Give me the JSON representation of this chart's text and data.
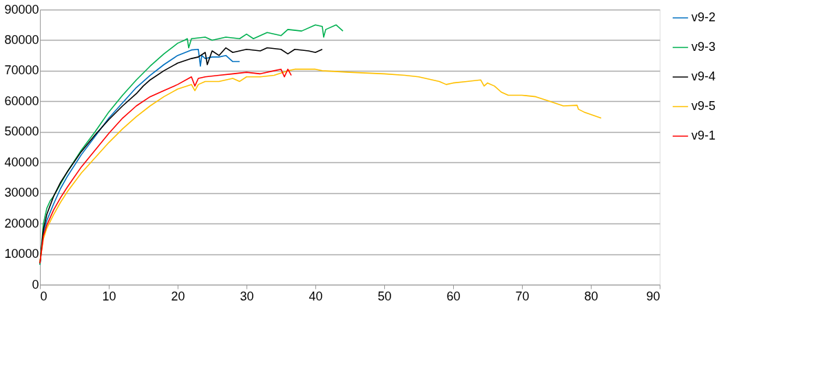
{
  "chart_data": {
    "type": "line",
    "xlim": [
      0,
      90
    ],
    "xticks": [
      0,
      10,
      20,
      30,
      40,
      50,
      60,
      70,
      80,
      90
    ],
    "ylim": [
      0,
      90000
    ],
    "yticks": [
      0,
      10000,
      20000,
      30000,
      40000,
      50000,
      60000,
      70000,
      80000,
      90000
    ],
    "grid": "y",
    "legend": "right",
    "marker": "none",
    "line_style": "solid",
    "series": [
      {
        "name": "v9-2",
        "color": "#0070c0",
        "x": [
          0,
          0.5,
          1,
          2,
          3,
          4,
          6,
          8,
          10,
          12,
          14,
          16,
          18,
          20,
          22,
          23,
          23.3,
          23.5,
          24,
          25,
          26,
          27,
          28,
          29
        ],
        "values": [
          6500,
          17000,
          21000,
          26500,
          31500,
          35500,
          42500,
          48500,
          54500,
          59500,
          64500,
          68500,
          72000,
          75000,
          76800,
          77000,
          71500,
          75000,
          74000,
          74500,
          74500,
          75000,
          73000,
          73000
        ]
      },
      {
        "name": "v9-3",
        "color": "#00b050",
        "x": [
          0,
          0.5,
          1,
          1.5,
          2,
          3,
          4,
          5,
          6,
          8,
          10,
          12,
          14,
          16,
          18,
          20,
          21,
          21.4,
          21.6,
          22,
          24,
          25,
          27,
          29,
          30,
          31,
          33,
          35,
          36,
          38,
          40,
          41,
          41.2,
          41.5,
          43,
          44
        ],
        "values": [
          6500,
          20000,
          25000,
          27500,
          29000,
          33000,
          37000,
          40500,
          44000,
          50000,
          56500,
          62000,
          67000,
          71500,
          75500,
          79000,
          80000,
          80500,
          77500,
          80500,
          81000,
          80000,
          81000,
          80500,
          82000,
          80500,
          82500,
          81500,
          83500,
          83000,
          85000,
          84500,
          81000,
          83500,
          85000,
          83000
        ]
      },
      {
        "name": "v9-4",
        "color": "#000000",
        "x": [
          0,
          0.5,
          1,
          2,
          3,
          4,
          6,
          8,
          10,
          12,
          14,
          15,
          16,
          18,
          20,
          22,
          23,
          24,
          24.3,
          25,
          26,
          27,
          28,
          30,
          32,
          33,
          35,
          36,
          37,
          39,
          40,
          41
        ],
        "values": [
          7000,
          18000,
          23000,
          29000,
          33500,
          37000,
          43500,
          49000,
          54000,
          58500,
          62500,
          65000,
          67000,
          70000,
          72500,
          74000,
          74500,
          76000,
          72000,
          76500,
          75000,
          77500,
          76000,
          77000,
          76500,
          77500,
          77000,
          75500,
          77000,
          76500,
          76000,
          77000
        ]
      },
      {
        "name": "v9-5",
        "color": "#ffc000",
        "x": [
          0,
          0.5,
          1,
          2,
          3,
          4,
          6,
          8,
          10,
          12,
          14,
          16,
          18,
          20,
          22,
          22.5,
          23,
          24,
          26,
          28,
          29,
          30,
          32,
          34,
          36,
          37,
          40,
          41,
          45,
          50,
          53,
          55,
          57,
          58,
          59,
          60,
          62,
          64,
          64.5,
          65,
          66,
          67,
          68,
          70,
          72,
          74,
          76,
          78,
          78.2,
          79,
          81.5
        ],
        "values": [
          7500,
          15000,
          18500,
          23000,
          27000,
          30500,
          36500,
          41500,
          46500,
          51000,
          55000,
          58500,
          61500,
          64000,
          65500,
          63500,
          65500,
          66500,
          66500,
          67500,
          66500,
          68000,
          68000,
          68500,
          70000,
          70500,
          70500,
          70000,
          69500,
          69000,
          68500,
          68000,
          67000,
          66500,
          65500,
          66000,
          66500,
          67000,
          65000,
          66000,
          65000,
          63000,
          62000,
          62000,
          61500,
          60000,
          58500,
          58700,
          57400,
          56500,
          54500
        ]
      },
      {
        "name": "v9-1",
        "color": "#ff0000",
        "x": [
          0,
          0.5,
          1,
          2,
          3,
          4,
          6,
          8,
          10,
          12,
          14,
          16,
          18,
          20,
          22,
          22.5,
          23,
          24,
          26,
          28,
          30,
          32,
          34,
          35,
          35.5,
          36,
          36.5
        ],
        "values": [
          7000,
          16000,
          19500,
          24500,
          28500,
          32000,
          38500,
          44000,
          49500,
          54500,
          58500,
          61500,
          63500,
          65500,
          68000,
          65000,
          67500,
          68000,
          68500,
          69000,
          69500,
          69000,
          70000,
          70500,
          68000,
          70500,
          68500
        ]
      }
    ]
  }
}
